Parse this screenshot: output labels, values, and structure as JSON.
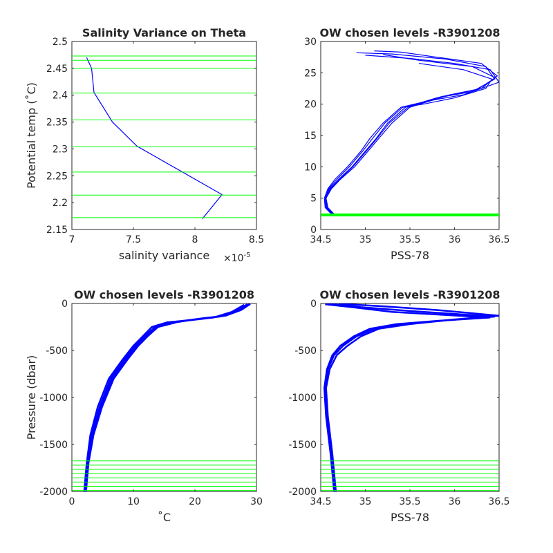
{
  "colors": {
    "series": "#0000ff",
    "levels": "#00ff00",
    "axes": "#262626"
  },
  "chart_data": [
    {
      "type": "line",
      "title": "Salinity Variance on Theta",
      "xlabel": "salinity variance",
      "x_multiplier": "×10",
      "x_exponent": "-5",
      "ylabel": "Potential temp (˚C)",
      "xlim": [
        7,
        8.5
      ],
      "ylim": [
        2.15,
        2.5
      ],
      "xticks": [
        "7",
        "7.5",
        "8",
        "8.5"
      ],
      "yticks": [
        "2.15",
        "2.2",
        "2.25",
        "2.3",
        "2.35",
        "2.4",
        "2.45",
        "2.5"
      ],
      "series": [
        {
          "x": [
            8.06,
            8.22,
            7.53,
            7.33,
            7.18,
            7.16,
            7.12
          ],
          "y": [
            2.17,
            2.215,
            2.305,
            2.35,
            2.405,
            2.45,
            2.47
          ]
        }
      ],
      "levels": [
        2.172,
        2.214,
        2.257,
        2.304,
        2.354,
        2.404,
        2.45,
        2.465,
        2.473
      ]
    },
    {
      "type": "line",
      "title": "OW chosen levels -R3901208",
      "xlabel": "PSS-78",
      "ylabel": "",
      "xlim": [
        34.5,
        36.5
      ],
      "ylim": [
        0,
        30
      ],
      "xticks": [
        "34.5",
        "35",
        "35.5",
        "36",
        "36.5"
      ],
      "yticks": [
        "0",
        "5",
        "10",
        "15",
        "20",
        "25",
        "30"
      ],
      "series": [
        {
          "x": [
            34.65,
            34.57,
            34.55,
            34.6,
            34.7,
            34.85,
            35.0,
            35.12,
            35.25,
            35.45,
            35.8,
            36.2,
            36.45,
            36.35,
            35.9,
            35.3,
            34.9
          ],
          "y": [
            2.3,
            3.5,
            5,
            6.5,
            8,
            10,
            12.5,
            14.5,
            17,
            19.5,
            21,
            22,
            24,
            26,
            27.2,
            28,
            28.2
          ]
        },
        {
          "x": [
            34.63,
            34.55,
            34.54,
            34.58,
            34.66,
            34.8,
            34.95,
            35.05,
            35.2,
            35.4,
            35.7,
            36.1,
            36.5,
            36.4,
            36.0,
            35.5,
            35.0
          ],
          "y": [
            2.3,
            3.5,
            5,
            6.5,
            8,
            10,
            12.5,
            14.5,
            17,
            19.5,
            20.5,
            21.5,
            23.5,
            25.5,
            26.5,
            27.3,
            27.8
          ]
        },
        {
          "x": [
            34.66,
            34.58,
            34.56,
            34.62,
            34.72,
            34.88,
            35.03,
            35.15,
            35.3,
            35.5,
            35.95,
            36.3,
            36.48,
            36.3,
            35.8,
            35.4,
            35.1
          ],
          "y": [
            2.3,
            3.5,
            5,
            6.5,
            8,
            10,
            12.5,
            14.5,
            17,
            19.5,
            21.5,
            22.5,
            24.5,
            26.5,
            27.5,
            28.3,
            28.5
          ]
        },
        {
          "x": [
            34.64,
            34.56,
            34.55,
            34.59,
            34.68,
            34.82,
            34.97,
            35.08,
            35.22,
            35.42,
            35.65,
            36.0,
            36.35,
            36.42,
            36.1,
            35.6
          ],
          "y": [
            2.3,
            3.5,
            5,
            6.5,
            8,
            10,
            12.5,
            14.5,
            17,
            19.5,
            20,
            21,
            22.5,
            24,
            25.5,
            26.5
          ]
        },
        {
          "x": [
            34.65,
            34.57,
            34.56,
            34.61,
            34.71,
            34.86,
            35.01,
            35.13,
            35.27,
            35.48,
            35.85,
            36.25,
            36.46,
            36.2,
            35.6,
            35.2
          ],
          "y": [
            2.3,
            3.5,
            5,
            6.5,
            8,
            10,
            12.5,
            14.5,
            17,
            19.5,
            21.2,
            22.3,
            24.2,
            26,
            27,
            27.9
          ]
        }
      ],
      "levels": [
        2.172,
        2.214,
        2.257,
        2.304,
        2.354,
        2.404,
        2.45,
        2.465,
        2.473
      ]
    },
    {
      "type": "line",
      "title": "OW chosen levels -R3901208",
      "xlabel": "˚C",
      "ylabel": "Pressure (dbar)",
      "xlim": [
        0,
        30
      ],
      "ylim": [
        -2000,
        0
      ],
      "xticks": [
        "0",
        "10",
        "20",
        "30"
      ],
      "yticks": [
        "-2000",
        "-1500",
        "-1000",
        "-500",
        "0"
      ],
      "series": [
        {
          "x": [
            2.1,
            2.5,
            3.2,
            4.5,
            6.3,
            8.5,
            10.3,
            11.8,
            13.5,
            16,
            20,
            24,
            26.5,
            28.5
          ],
          "y": [
            -2000,
            -1700,
            -1400,
            -1100,
            -800,
            -600,
            -450,
            -350,
            -250,
            -200,
            -170,
            -140,
            -80,
            -10
          ]
        },
        {
          "x": [
            2.3,
            2.7,
            3.5,
            4.9,
            6.8,
            9.0,
            10.8,
            12.3,
            14,
            17,
            21,
            25,
            27.5,
            29
          ],
          "y": [
            -2000,
            -1700,
            -1400,
            -1100,
            -800,
            -600,
            -450,
            -350,
            -250,
            -200,
            -160,
            -130,
            -70,
            -5
          ]
        },
        {
          "x": [
            2.0,
            2.4,
            3.0,
            4.2,
            6.0,
            8.2,
            10.0,
            11.5,
            13,
            15.5,
            19,
            23,
            26,
            28
          ],
          "y": [
            -2000,
            -1700,
            -1400,
            -1100,
            -800,
            -600,
            -450,
            -350,
            -250,
            -200,
            -180,
            -150,
            -90,
            -15
          ]
        },
        {
          "x": [
            2.2,
            2.6,
            3.4,
            4.7,
            6.6,
            8.8,
            10.6,
            12.1,
            13.8,
            16.5,
            20.5,
            24.5,
            27,
            28.8
          ],
          "y": [
            -2000,
            -1700,
            -1400,
            -1100,
            -800,
            -600,
            -450,
            -350,
            -250,
            -200,
            -165,
            -135,
            -75,
            -8
          ]
        }
      ],
      "levels": [
        -1675,
        -1720,
        -1765,
        -1810,
        -1855,
        -1900,
        -1945,
        -1990
      ]
    },
    {
      "type": "line",
      "title": "OW chosen levels -R3901208",
      "xlabel": "PSS-78",
      "ylabel": "",
      "xlim": [
        34.5,
        36.5
      ],
      "ylim": [
        -2000,
        0
      ],
      "xticks": [
        "34.5",
        "35",
        "35.5",
        "36",
        "36.5"
      ],
      "yticks": [
        "-2000",
        "-1500",
        "-1000",
        "-500",
        "0"
      ],
      "series": [
        {
          "x": [
            34.66,
            34.62,
            34.57,
            34.55,
            34.58,
            34.65,
            34.75,
            34.9,
            35.1,
            35.4,
            35.9,
            36.45,
            35.5,
            34.95,
            34.6
          ],
          "y": [
            -2000,
            -1600,
            -1200,
            -900,
            -700,
            -550,
            -450,
            -350,
            -270,
            -220,
            -180,
            -140,
            -80,
            -40,
            -5
          ]
        },
        {
          "x": [
            34.67,
            34.63,
            34.58,
            34.56,
            34.6,
            34.68,
            34.8,
            34.95,
            35.15,
            35.5,
            36.0,
            36.5,
            35.8,
            35.2,
            34.7
          ],
          "y": [
            -2000,
            -1600,
            -1200,
            -900,
            -700,
            -550,
            -450,
            -350,
            -270,
            -220,
            -170,
            -130,
            -70,
            -30,
            -3
          ]
        },
        {
          "x": [
            34.65,
            34.61,
            34.56,
            34.54,
            34.57,
            34.63,
            34.72,
            34.87,
            35.05,
            35.35,
            35.8,
            36.4,
            35.3,
            34.9,
            34.55
          ],
          "y": [
            -2000,
            -1600,
            -1200,
            -900,
            -700,
            -550,
            -450,
            -350,
            -270,
            -220,
            -185,
            -150,
            -90,
            -45,
            -8
          ]
        }
      ],
      "levels": [
        -1675,
        -1720,
        -1765,
        -1810,
        -1855,
        -1900,
        -1945,
        -1990
      ]
    }
  ]
}
